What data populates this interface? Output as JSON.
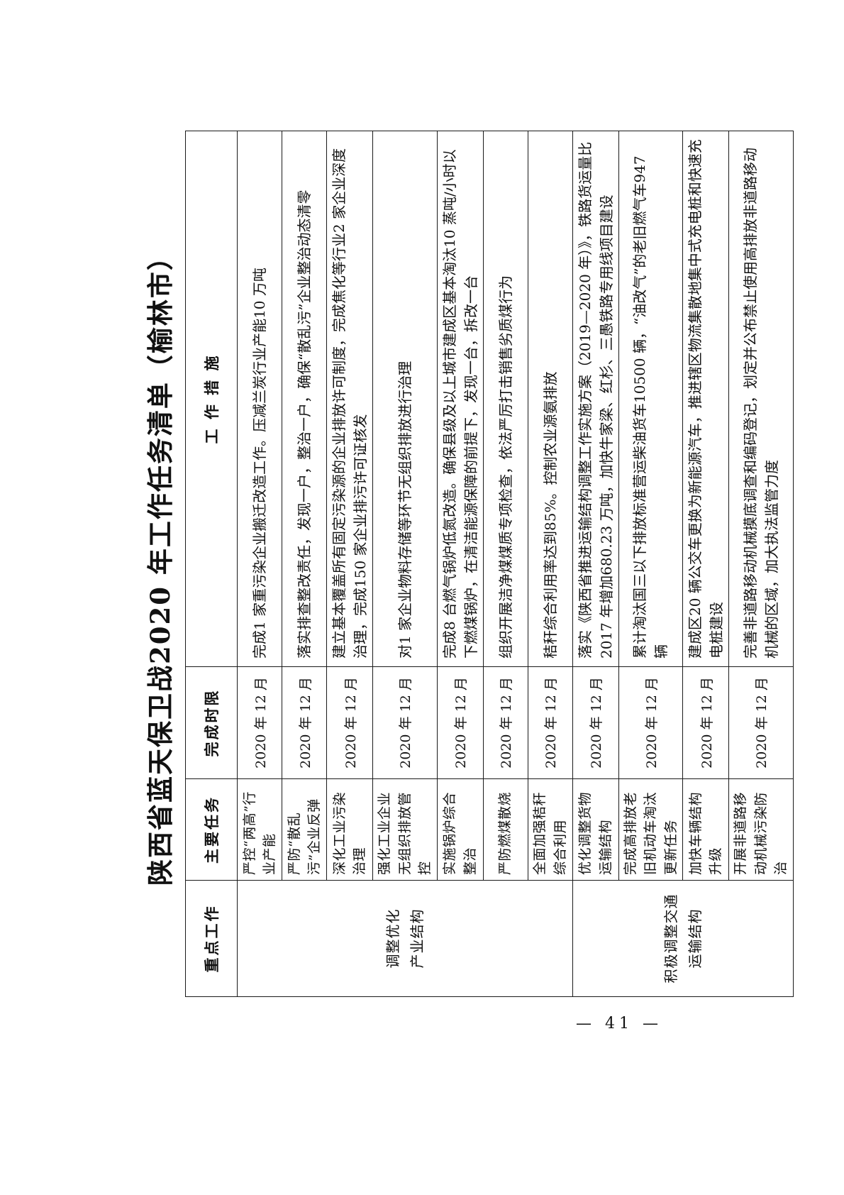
{
  "title": "陕西省蓝天保卫战2020 年工作任务清单（榆林市）",
  "page_number": "— 41 —",
  "table": {
    "headers": [
      "重点工作",
      "主要任务",
      "完成时限",
      "工 作 措 施"
    ],
    "groups": [
      {
        "key_work": "调整优化\n产业结构",
        "rows": [
          {
            "task": "严控“两高”行业产能",
            "deadline": "2020 年 12 月",
            "measures": "完成1 家重污染企业搬迁改造工作。压减兰炭行业产能10 万吨"
          },
          {
            "task": "严防“散乱污”企业反弹",
            "deadline": "2020 年 12 月",
            "measures": "落实排查整改责任，发现一户，整治一户，确保“散乱污”企业整治动态清零"
          },
          {
            "task": "深化工业污染治理",
            "deadline": "2020 年 12 月",
            "measures": "建立基本覆盖所有固定污染源的企业排放许可制度，完成焦化等行业2 家企业深度治理，完成150 家企业排污许可证核发"
          },
          {
            "task": "强化工业企业无组织排放管控",
            "deadline": "2020 年 12 月",
            "measures": "对1 家企业物料存储等环节无组织排放进行治理"
          },
          {
            "task": "实施锅炉综合整治",
            "deadline": "2020 年 12 月",
            "measures": "完成8 台燃气锅炉低氮改造。确保县级及以上城市建成区基本淘汰10 蒸吨/小时以下燃煤锅炉，在清洁能源保障的前提下，发现一台，拆改一台"
          },
          {
            "task": "严防燃煤散烧",
            "deadline": "2020 年 12 月",
            "measures": "组织开展洁净煤煤质专项检查，依法严厉打击销售劣质煤行为"
          },
          {
            "task": "全面加强秸秆综合利用",
            "deadline": "2020 年 12 月",
            "measures": "秸秆综合利用率达到85%。控制农业源氨排放"
          }
        ]
      },
      {
        "key_work": "积极调整交通\n运输结构",
        "rows": [
          {
            "task": "优化调整货物运输结构",
            "deadline": "2020 年 12 月",
            "measures": "落实《陕西省推进运输结构调整工作实施方案（2019—2020 年）》，铁路货运量比2017 年增加680.23 万吨，加快牛家梁、红杉、三愚铁路专用线项目建设"
          },
          {
            "task": "完成高排放老旧机动车淘汰更新任务",
            "deadline": "2020 年 12 月",
            "measures": "累计淘汰国三以下排放标准营运柴油货车10500 辆，“油改气”的老旧燃气车947 辆"
          },
          {
            "task": "加快车辆结构升级",
            "deadline": "2020 年 12 月",
            "measures": "建成区20 辆公交车更换为新能源汽车，推进辖区物流集散地集中式充电桩和快速充电桩建设"
          },
          {
            "task": "开展非道路移动机械污染防治",
            "deadline": "2020 年 12 月",
            "measures": "完善非道路移动机械摸底调查和编码登记，划定并公布禁止使用高排放非道路移动机械的区域，加大执法监管力度"
          }
        ]
      }
    ]
  }
}
